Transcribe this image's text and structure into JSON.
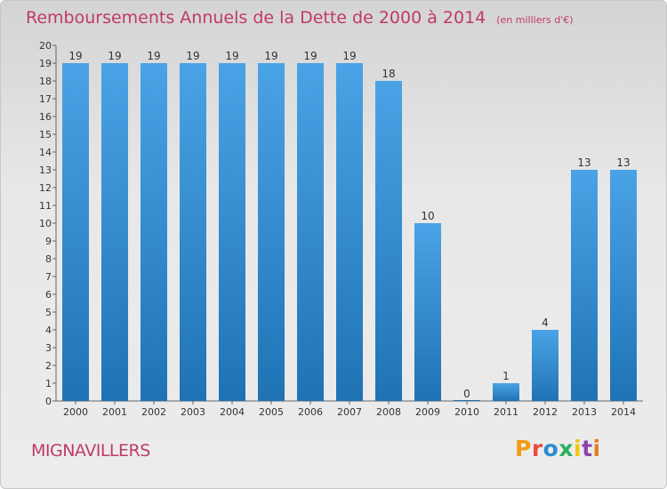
{
  "chart_data": {
    "type": "bar",
    "title": "Remboursements Annuels de la Dette de 2000 à 2014",
    "subtitle": "(en milliers d'€)",
    "categories": [
      "2000",
      "2001",
      "2002",
      "2003",
      "2004",
      "2005",
      "2006",
      "2007",
      "2008",
      "2009",
      "2010",
      "2011",
      "2012",
      "2013",
      "2014"
    ],
    "values": [
      19,
      19,
      19,
      19,
      19,
      19,
      19,
      19,
      18,
      10,
      0,
      1,
      4,
      13,
      13
    ],
    "ylim": [
      0,
      20
    ],
    "yticks": [
      0,
      1,
      2,
      3,
      4,
      5,
      6,
      7,
      8,
      9,
      10,
      11,
      12,
      13,
      14,
      15,
      16,
      17,
      18,
      19,
      20
    ],
    "xlabel": "",
    "ylabel": "",
    "grid": false,
    "bar_color": "#4aa3e6",
    "bar_color_dark": "#1f73b5"
  },
  "footer": {
    "location": "MIGNAVILLERS",
    "brand": "Proxiti",
    "brand_colors": [
      "#f39c12",
      "#e74c3c",
      "#2e8bd0",
      "#27ae60",
      "#f1c40f",
      "#8e44ad",
      "#e67e22"
    ]
  }
}
